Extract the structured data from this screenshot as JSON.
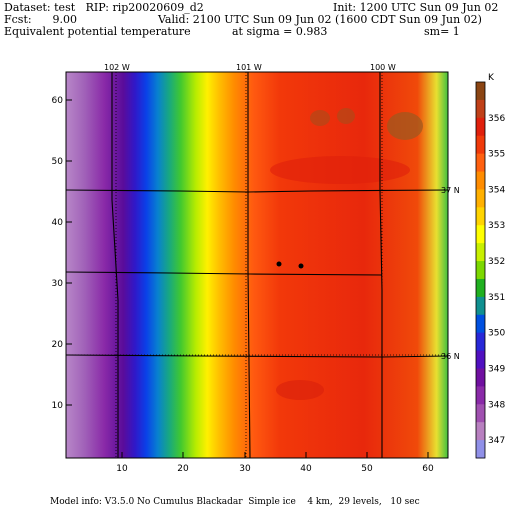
{
  "header": {
    "dataset": "Dataset: test   RIP: rip20020609_d2",
    "init": "Init: 1200 UTC Sun 09 Jun 02",
    "fcst": "Fcst:      9.00",
    "valid": "Valid: 2100 UTC Sun 09 Jun 02 (1600 CDT Sun 09 Jun 02)",
    "field": "Equivalent potential temperature",
    "sigma": "at sigma = 0.983",
    "smoothing": "sm= 1"
  },
  "map": {
    "lon_labels": [
      "102 W",
      "101 W",
      "100 W"
    ],
    "lat_labels": [
      "37 N",
      "36 N"
    ]
  },
  "colorbar": {
    "unit": "K",
    "labels": [
      "356",
      "355",
      "354",
      "353",
      "352",
      "351",
      "350",
      "349",
      "348",
      "347"
    ],
    "colors": [
      "#8B4513",
      "#C04018",
      "#E0200C",
      "#F03A0A",
      "#FF6010",
      "#FF8C00",
      "#FFB000",
      "#FFD400",
      "#FFFF00",
      "#C8F000",
      "#7CD800",
      "#20B020",
      "#109090",
      "#0050E0",
      "#2828D8",
      "#5010C0",
      "#7010A0",
      "#8A2AA8",
      "#A050B0",
      "#B880C0",
      "#9090E8"
    ]
  },
  "chart_data": {
    "type": "heatmap",
    "x_ticks": [
      10,
      20,
      30,
      40,
      50,
      60
    ],
    "y_ticks": [
      10,
      20,
      30,
      40,
      50,
      60
    ],
    "xlim": [
      1,
      64
    ],
    "ylim": [
      1,
      64
    ]
  },
  "footer": {
    "model_info": "Model info: V3.5.0 No Cumulus Blackadar  Simple ice    4 km,  29 levels,   10 sec"
  }
}
